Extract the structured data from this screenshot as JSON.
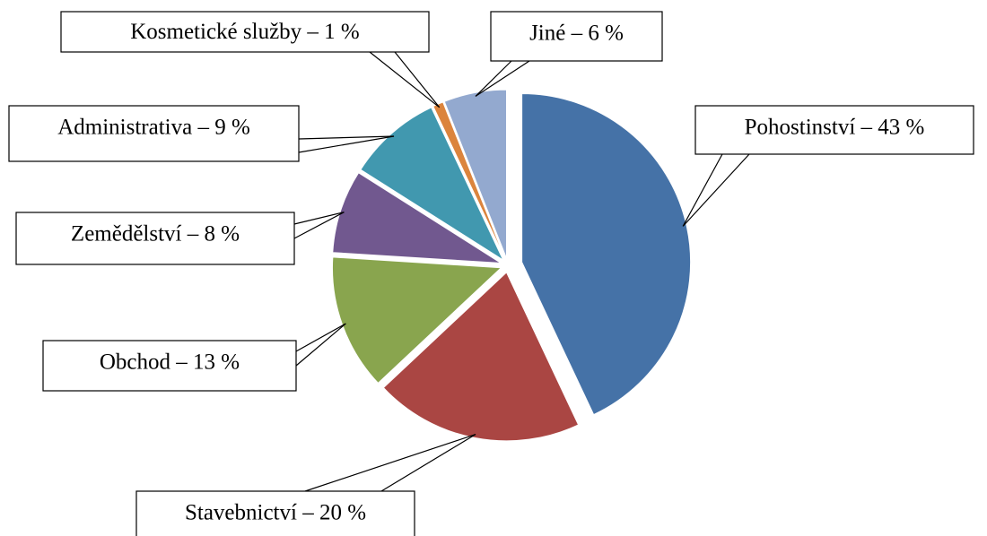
{
  "chart_data": {
    "type": "pie",
    "values": [
      43,
      20,
      13,
      8,
      9,
      1,
      6
    ],
    "value_labels": [
      "Pohostinství – 43 %",
      "Stavebnictví – 20 %",
      "Obchod – 13 %",
      "Zemědělství – 8 %",
      "Administrativa – 9 %",
      "Kosmetické služby – 1 %",
      "Jiné – 6 %"
    ],
    "colors": [
      "#4572a7",
      "#aa4643",
      "#89a54e",
      "#71588f",
      "#4198af",
      "#db843d",
      "#93a9cf"
    ]
  }
}
